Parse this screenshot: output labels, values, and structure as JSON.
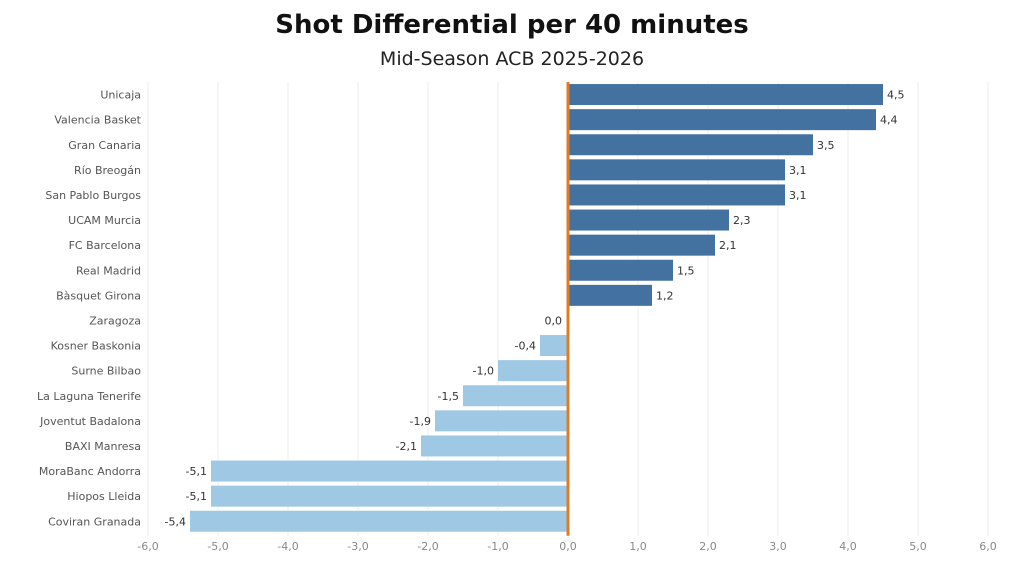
{
  "chart_data": {
    "type": "bar",
    "orientation": "horizontal",
    "title": "Shot Differential per 40 minutes",
    "subtitle": "Mid-Season ACB 2025-2026",
    "categories": [
      "Unicaja",
      "Valencia Basket",
      "Gran Canaria",
      "Río Breogán",
      "San Pablo Burgos",
      "UCAM Murcia",
      "FC Barcelona",
      "Real Madrid",
      "Bàsquet Girona",
      "Zaragoza",
      "Kosner Baskonia",
      "Surne Bilbao",
      "La Laguna Tenerife",
      "Joventut Badalona",
      "BAXI Manresa",
      "MoraBanc Andorra",
      "Hiopos Lleida",
      "Coviran Granada"
    ],
    "values": [
      4.5,
      4.4,
      3.5,
      3.1,
      3.1,
      2.3,
      2.1,
      1.5,
      1.2,
      0.0,
      -0.4,
      -1.0,
      -1.5,
      -1.9,
      -2.1,
      -5.1,
      -5.1,
      -5.4
    ],
    "value_labels": [
      "4,5",
      "4,4",
      "3,5",
      "3,1",
      "3,1",
      "2,3",
      "2,1",
      "1,5",
      "1,2",
      "0,0",
      "-0,4",
      "-1,0",
      "-1,5",
      "-1,9",
      "-2,1",
      "-5,1",
      "-5,1",
      "-5,4"
    ],
    "xlim": [
      -6,
      6
    ],
    "xticks": [
      -6,
      -5,
      -4,
      -3,
      -2,
      -1,
      0,
      1,
      2,
      3,
      4,
      5,
      6
    ],
    "xtick_labels": [
      "-6,0",
      "-5,0",
      "-4,0",
      "-3,0",
      "-2,0",
      "-1,0",
      "0,0",
      "1,0",
      "2,0",
      "3,0",
      "4,0",
      "5,0",
      "6,0"
    ],
    "grid": true,
    "colors": {
      "positive": "#4472a0",
      "negative": "#9fc8e5",
      "zero_line": "#e07b26",
      "grid": "#eeeeee"
    }
  }
}
